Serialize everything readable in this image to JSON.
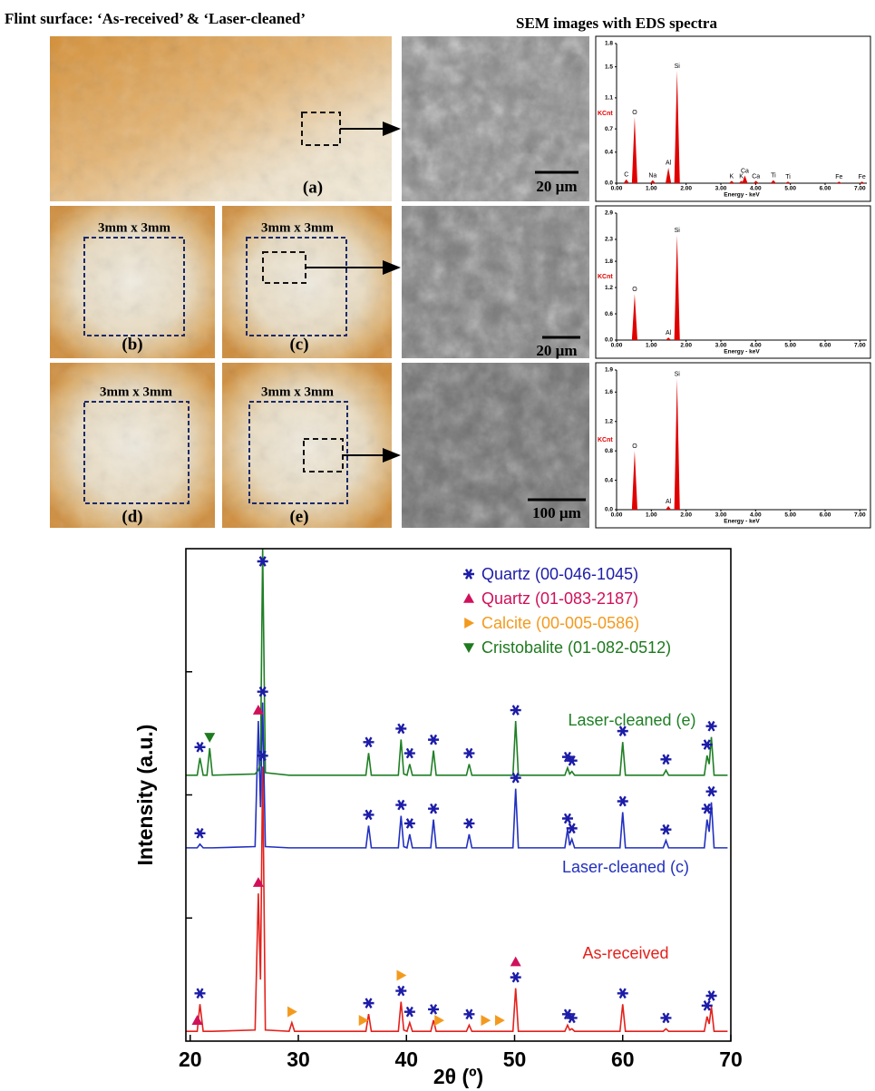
{
  "figure": {
    "title_left": "Flint surface: ‘As-received’ & ‘Laser-cleaned’",
    "title_right": "SEM images with EDS spectra",
    "photo_labels": [
      "(a)",
      "(b)",
      "(c)",
      "(d)",
      "(e)"
    ],
    "area_labels": [
      "3mm x 3mm",
      "3mm x 3mm",
      "3mm x 3mm",
      "3mm x 3mm"
    ],
    "scale_bars": [
      "20 µm",
      "20 µm",
      "100 µm"
    ]
  },
  "chart_data": [
    {
      "type": "line",
      "xlabel": "2θ (º)",
      "ylabel": "Intensity (a.u.)",
      "xlim": [
        19.6,
        70.0
      ],
      "ylim": [
        0,
        4
      ],
      "xticks": [
        20,
        30,
        40,
        50,
        60,
        70
      ],
      "yticks": [
        1,
        2,
        3
      ],
      "legend": "upper right",
      "x": [
        19.6,
        20.65,
        20.9,
        21.2,
        21.55,
        21.8,
        22.05,
        26.0,
        26.3,
        26.5,
        26.7,
        26.95,
        29.15,
        29.4,
        29.65,
        36.25,
        36.5,
        36.75,
        39.25,
        39.5,
        39.75,
        40.05,
        40.3,
        40.55,
        42.25,
        42.5,
        42.75,
        45.55,
        45.8,
        46.05,
        49.85,
        50.1,
        50.35,
        54.65,
        54.9,
        55.1,
        55.3,
        55.55,
        59.75,
        60.0,
        60.25,
        63.75,
        64.0,
        64.25,
        67.55,
        67.8,
        68.0,
        68.2,
        68.45,
        69.7
      ],
      "series": [
        {
          "name": "As-received",
          "color": "#e3211c",
          "values": [
            0.08,
            0.08,
            0.3,
            0.08,
            0.08,
            0.08,
            0.08,
            0.09,
            1.2,
            0.5,
            2.23,
            0.09,
            0.08,
            0.15,
            0.08,
            0.08,
            0.22,
            0.08,
            0.08,
            0.32,
            0.09,
            0.08,
            0.15,
            0.08,
            0.08,
            0.17,
            0.08,
            0.08,
            0.13,
            0.08,
            0.08,
            0.43,
            0.08,
            0.08,
            0.13,
            0.09,
            0.1,
            0.08,
            0.08,
            0.3,
            0.08,
            0.08,
            0.1,
            0.08,
            0.08,
            0.2,
            0.14,
            0.28,
            0.08,
            0.08
          ]
        },
        {
          "name": "Laser-cleaned (c)",
          "color": "#2230c0",
          "values": [
            1.57,
            1.57,
            1.6,
            1.57,
            1.57,
            1.57,
            1.57,
            1.58,
            2.6,
            1.9,
            2.75,
            1.58,
            1.57,
            1.57,
            1.57,
            1.57,
            1.75,
            1.57,
            1.57,
            1.83,
            1.58,
            1.57,
            1.68,
            1.57,
            1.57,
            1.8,
            1.57,
            1.57,
            1.68,
            1.57,
            1.57,
            2.05,
            1.57,
            1.57,
            1.72,
            1.59,
            1.64,
            1.57,
            1.57,
            1.86,
            1.57,
            1.57,
            1.63,
            1.57,
            1.57,
            1.8,
            1.7,
            1.94,
            1.57,
            1.57
          ]
        },
        {
          "name": "Laser-cleaned (e)",
          "color": "#1f7f25",
          "values": [
            2.16,
            2.16,
            2.3,
            2.16,
            2.16,
            2.38,
            2.16,
            2.17,
            2.2,
            2.25,
            4.0,
            2.18,
            2.16,
            2.16,
            2.16,
            2.16,
            2.34,
            2.16,
            2.16,
            2.45,
            2.17,
            2.16,
            2.25,
            2.16,
            2.16,
            2.36,
            2.16,
            2.16,
            2.25,
            2.16,
            2.16,
            2.6,
            2.16,
            2.16,
            2.22,
            2.17,
            2.19,
            2.16,
            2.16,
            2.43,
            2.16,
            2.16,
            2.2,
            2.16,
            2.16,
            2.32,
            2.25,
            2.47,
            2.16,
            2.16
          ]
        }
      ],
      "phases": [
        {
          "name": "Quartz (00-046-1045)",
          "color": "#1c1ca8",
          "marker": "star",
          "positions": [
            [
              20.9,
              26.7,
              36.5,
              39.5,
              40.3,
              42.5,
              45.8,
              50.1,
              54.9,
              55.3,
              60.0,
              64.0,
              67.8,
              68.2
            ],
            [
              20.9,
              26.7,
              36.5,
              39.5,
              40.3,
              42.5,
              45.8,
              50.1,
              54.9,
              55.3,
              60.0,
              64.0,
              67.8,
              68.2
            ],
            [
              20.9,
              26.7,
              36.5,
              39.5,
              40.3,
              42.5,
              45.8,
              50.1,
              54.9,
              55.3,
              60.0,
              64.0,
              67.8,
              68.2
            ]
          ]
        },
        {
          "name": "Quartz (01-083-2187)",
          "color": "#d0105a",
          "marker": "triangle-up",
          "positions": [
            [
              20.65,
              26.3,
              50.1
            ],
            [
              26.3
            ],
            []
          ]
        },
        {
          "name": "Calcite (00-005-0586)",
          "color": "#f39a1e",
          "marker": "triangle-right",
          "positions": [
            [
              29.4,
              36.0,
              39.5,
              43.0,
              47.3,
              48.6
            ],
            [],
            []
          ]
        },
        {
          "name": "Cristobalite (01-082-0512)",
          "color": "#1e7a1e",
          "marker": "triangle-down",
          "positions": [
            [],
            [],
            [
              21.8
            ]
          ]
        }
      ]
    },
    {
      "type": "spectrum",
      "ylabel": "KCnt",
      "xlabel": "Energy - keV",
      "color": "#e00000",
      "xlim": [
        0,
        7.2
      ],
      "ylim": [
        0,
        1.8
      ],
      "xticks": [
        {
          "value": 0,
          "label": "0.00"
        },
        {
          "value": 1,
          "label": "1.00"
        },
        {
          "value": 2,
          "label": "2.00"
        },
        {
          "value": 3,
          "label": "3.00"
        },
        {
          "value": 4,
          "label": "4.00"
        },
        {
          "value": 5,
          "label": "5.00"
        },
        {
          "value": 6,
          "label": "6.00"
        },
        {
          "value": 7,
          "label": "7.00"
        }
      ],
      "yticks": [
        {
          "value": 0,
          "label": "0.0"
        },
        0.4,
        0.7,
        1.1,
        1.5,
        1.8
      ],
      "x": [
        0.28,
        0.52,
        1.04,
        1.49,
        1.74,
        3.31,
        3.59,
        3.69,
        4.01,
        4.51,
        4.93,
        6.4,
        7.06
      ],
      "values": [
        0.05,
        0.85,
        0.04,
        0.2,
        1.45,
        0.03,
        0.03,
        0.1,
        0.03,
        0.04,
        0.02,
        0.02,
        0.02
      ],
      "labels": [
        "C",
        "O",
        "Na",
        "Al",
        "Si",
        "K",
        "K",
        "Ca",
        "Ca",
        "Ti",
        "Ti",
        "Fe",
        "Fe"
      ]
    },
    {
      "type": "spectrum",
      "ylabel": "KCnt",
      "xlabel": "Energy - keV",
      "color": "#e00000",
      "xlim": [
        0,
        7.2
      ],
      "ylim": [
        0,
        2.9
      ],
      "xticks": [
        {
          "value": 0,
          "label": "0.00"
        },
        {
          "value": 1,
          "label": "1.00"
        },
        {
          "value": 2,
          "label": "2.00"
        },
        {
          "value": 3,
          "label": "3.00"
        },
        {
          "value": 4,
          "label": "4.00"
        },
        {
          "value": 5,
          "label": "5.00"
        },
        {
          "value": 6,
          "label": "6.00"
        },
        {
          "value": 7,
          "label": "7.00"
        }
      ],
      "yticks": [
        {
          "value": 0,
          "label": "0.0"
        },
        0.6,
        1.2,
        1.8,
        2.3,
        2.9
      ],
      "x": [
        0.52,
        1.49,
        1.74
      ],
      "values": [
        1.05,
        0.06,
        2.4
      ],
      "labels": [
        "O",
        "Al",
        "Si"
      ]
    },
    {
      "type": "spectrum",
      "ylabel": "KCnt",
      "xlabel": "Energy - keV",
      "color": "#e00000",
      "xlim": [
        0,
        7.2
      ],
      "ylim": [
        0,
        1.9
      ],
      "xticks": [
        {
          "value": 0,
          "label": "0.00"
        },
        {
          "value": 1,
          "label": "1.00"
        },
        {
          "value": 2,
          "label": "2.00"
        },
        {
          "value": 3,
          "label": "3.00"
        },
        {
          "value": 4,
          "label": "4.00"
        },
        {
          "value": 5,
          "label": "5.00"
        },
        {
          "value": 6,
          "label": "6.00"
        },
        {
          "value": 7,
          "label": "7.00"
        }
      ],
      "yticks": [
        {
          "value": 0,
          "label": "0.0"
        },
        0.4,
        0.8,
        1.2,
        1.6,
        1.9
      ],
      "x": [
        0.52,
        1.49,
        1.74
      ],
      "values": [
        0.8,
        0.05,
        1.78
      ],
      "labels": [
        "O",
        "Al",
        "Si"
      ]
    }
  ]
}
